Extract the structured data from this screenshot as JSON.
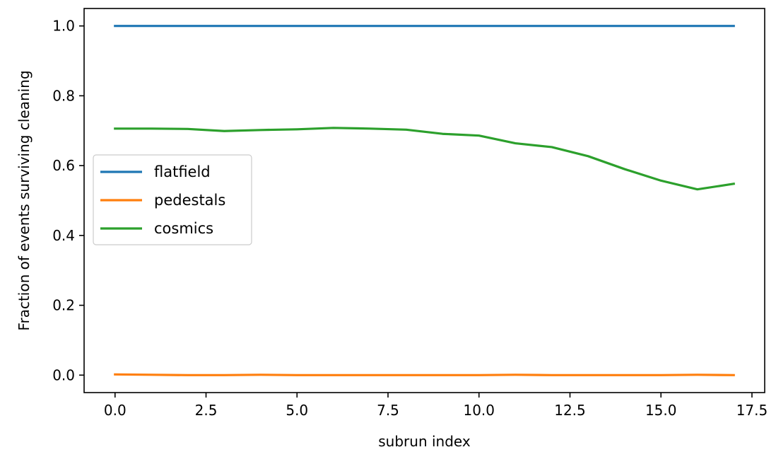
{
  "chart_data": {
    "type": "line",
    "xlabel": "subrun index",
    "ylabel": "Fraction of events surviving cleaning",
    "xlim": [
      -0.85,
      17.85
    ],
    "ylim": [
      -0.05,
      1.05
    ],
    "xticks": [
      0.0,
      2.5,
      5.0,
      7.5,
      10.0,
      12.5,
      15.0,
      17.5
    ],
    "xtick_labels": [
      "0.0",
      "2.5",
      "5.0",
      "7.5",
      "10.0",
      "12.5",
      "15.0",
      "17.5"
    ],
    "yticks": [
      0.0,
      0.2,
      0.4,
      0.6,
      0.8,
      1.0
    ],
    "ytick_labels": [
      "0.0",
      "0.2",
      "0.4",
      "0.6",
      "0.8",
      "1.0"
    ],
    "grid": false,
    "legend_position": "center-left",
    "x": [
      0,
      1,
      2,
      3,
      4,
      5,
      6,
      7,
      8,
      9,
      10,
      11,
      12,
      13,
      14,
      15,
      16,
      17
    ],
    "series": [
      {
        "name": "flatfield",
        "color": "#1f77b4",
        "values": [
          1.0,
          1.0,
          1.0,
          1.0,
          1.0,
          1.0,
          1.0,
          1.0,
          1.0,
          1.0,
          1.0,
          1.0,
          1.0,
          1.0,
          1.0,
          1.0,
          1.0,
          1.0
        ]
      },
      {
        "name": "pedestals",
        "color": "#ff7f0e",
        "values": [
          0.002,
          0.001,
          0.0,
          0.0,
          0.001,
          0.0,
          0.0,
          0.0,
          0.0,
          0.0,
          0.0,
          0.001,
          0.0,
          0.0,
          0.0,
          0.0,
          0.001,
          0.0
        ]
      },
      {
        "name": "cosmics",
        "color": "#2ca02c",
        "values": [
          0.706,
          0.706,
          0.705,
          0.699,
          0.702,
          0.704,
          0.708,
          0.706,
          0.703,
          0.691,
          0.686,
          0.664,
          0.653,
          0.627,
          0.59,
          0.557,
          0.532,
          0.548
        ]
      }
    ]
  }
}
